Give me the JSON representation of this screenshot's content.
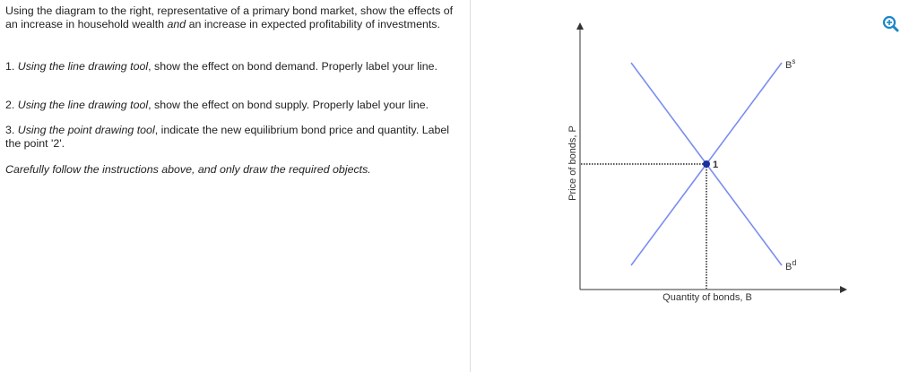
{
  "instructions": {
    "intro": [
      "Using the diagram to the right, representative of a primary bond market, show the effects of an increase in household wealth ",
      "and",
      " an increase in expected profitability of investments."
    ],
    "steps": [
      [
        "1. ",
        "Using the line drawing tool",
        ", show the effect on bond  demand. Properly label your line."
      ],
      [
        "2. ",
        "Using the line drawing tool",
        ", show the effect on bond supply. Properly label your line."
      ],
      [
        "3. ",
        "Using the point drawing tool",
        ", indicate the new equilibrium bond price and quantity. Label the point '2'."
      ]
    ],
    "note": "Carefully follow the instructions above, and only draw the required objects."
  },
  "diagram": {
    "y_axis_label": "Price of bonds, P",
    "x_axis_label": "Quantity of bonds, B",
    "supply_label": {
      "base": "B",
      "sup": "s"
    },
    "demand_label": {
      "base": "B",
      "sup": "d"
    },
    "point_label": "1"
  }
}
